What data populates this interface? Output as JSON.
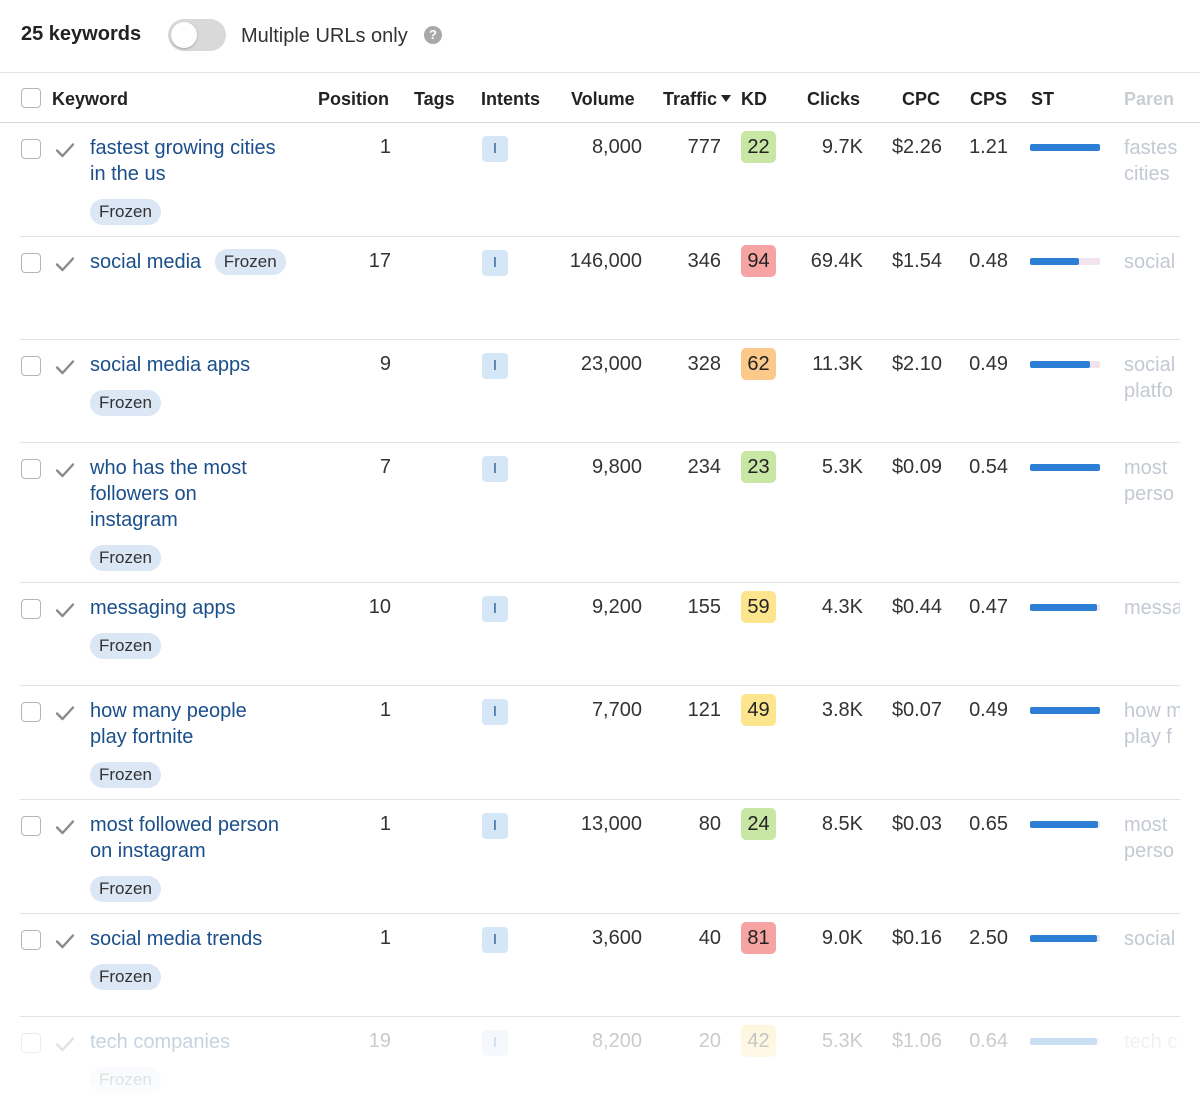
{
  "header": {
    "keyword_count": "25 keywords",
    "toggle_label": "Multiple URLs only",
    "help_icon": "?"
  },
  "columns": {
    "keyword": "Keyword",
    "position": "Position",
    "tags": "Tags",
    "intents": "Intents",
    "volume": "Volume",
    "traffic": "Traffic",
    "kd": "KD",
    "clicks": "Clicks",
    "cpc": "CPC",
    "cps": "CPS",
    "st": "ST",
    "parent": "Paren"
  },
  "colors": {
    "kd_green": "#c8e6a4",
    "kd_red": "#f5a3a3",
    "kd_orange": "#fbc98a",
    "kd_yellow": "#fde58e",
    "link": "#1a4f8b",
    "st_bar": "#2d7fd6"
  },
  "rows": [
    {
      "keyword_lines": [
        "fastest growing cities",
        "in the us"
      ],
      "frozen": "Frozen",
      "position": "1",
      "intent": "I",
      "volume": "8,000",
      "traffic": "777",
      "kd": "22",
      "clicks": "9.7K",
      "cpc": "$2.26",
      "cps": "1.21",
      "parent_lines": [
        "fastes",
        "cities"
      ]
    },
    {
      "keyword_lines": [
        "social media"
      ],
      "frozen": "Frozen",
      "position": "17",
      "intent": "I",
      "volume": "146,000",
      "traffic": "346",
      "kd": "94",
      "clicks": "69.4K",
      "cpc": "$1.54",
      "cps": "0.48",
      "parent_lines": [
        "social"
      ]
    },
    {
      "keyword_lines": [
        "social media apps"
      ],
      "frozen": "Frozen",
      "position": "9",
      "intent": "I",
      "volume": "23,000",
      "traffic": "328",
      "kd": "62",
      "clicks": "11.3K",
      "cpc": "$2.10",
      "cps": "0.49",
      "parent_lines": [
        "social",
        "platfo"
      ]
    },
    {
      "keyword_lines": [
        "who has the most",
        "followers on",
        "instagram"
      ],
      "frozen": "Frozen",
      "position": "7",
      "intent": "I",
      "volume": "9,800",
      "traffic": "234",
      "kd": "23",
      "clicks": "5.3K",
      "cpc": "$0.09",
      "cps": "0.54",
      "parent_lines": [
        "most",
        "perso"
      ]
    },
    {
      "keyword_lines": [
        "messaging apps"
      ],
      "frozen": "Frozen",
      "position": "10",
      "intent": "I",
      "volume": "9,200",
      "traffic": "155",
      "kd": "59",
      "clicks": "4.3K",
      "cpc": "$0.44",
      "cps": "0.47",
      "parent_lines": [
        "messa"
      ]
    },
    {
      "keyword_lines": [
        "how many people",
        "play fortnite"
      ],
      "frozen": "Frozen",
      "position": "1",
      "intent": "I",
      "volume": "7,700",
      "traffic": "121",
      "kd": "49",
      "clicks": "3.8K",
      "cpc": "$0.07",
      "cps": "0.49",
      "parent_lines": [
        "how m",
        "play f"
      ]
    },
    {
      "keyword_lines": [
        "most followed person",
        "on instagram"
      ],
      "frozen": "Frozen",
      "position": "1",
      "intent": "I",
      "volume": "13,000",
      "traffic": "80",
      "kd": "24",
      "clicks": "8.5K",
      "cpc": "$0.03",
      "cps": "0.65",
      "parent_lines": [
        "most",
        "perso"
      ]
    },
    {
      "keyword_lines": [
        "social media trends"
      ],
      "frozen": "Frozen",
      "position": "1",
      "intent": "I",
      "volume": "3,600",
      "traffic": "40",
      "kd": "81",
      "clicks": "9.0K",
      "cpc": "$0.16",
      "cps": "2.50",
      "parent_lines": [
        "social"
      ]
    },
    {
      "keyword_lines": [
        "tech companies"
      ],
      "frozen": "Frozen",
      "position": "19",
      "intent": "I",
      "volume": "8,200",
      "traffic": "20",
      "kd": "42",
      "clicks": "5.3K",
      "cpc": "$1.06",
      "cps": "0.64",
      "parent_lines": [
        "tech c"
      ]
    }
  ],
  "st_levels": [
    1.0,
    0.7,
    0.85,
    1.0,
    0.95,
    1.0,
    0.97,
    0.95,
    0.95
  ]
}
